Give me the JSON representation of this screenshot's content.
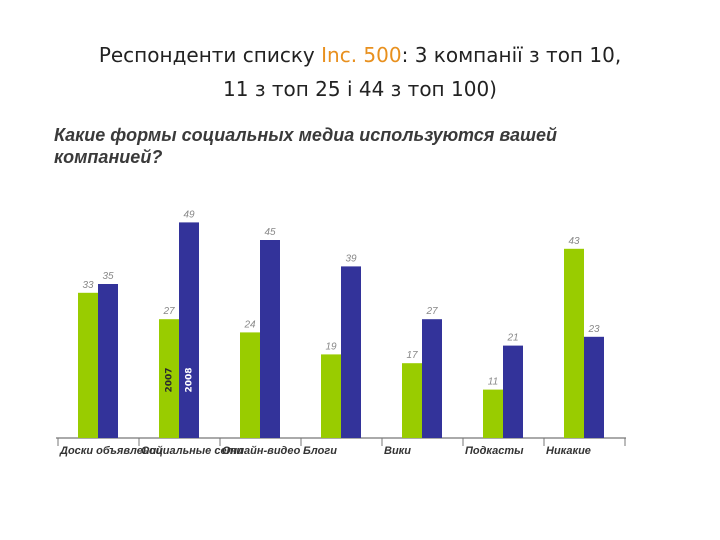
{
  "slide": {
    "title_part1": "Респонденти списку ",
    "title_accent": "Inc. 500",
    "title_part2": ": 3 компанії з топ 10,",
    "title_line2": "11 з топ 25 і 44 з топ 100)"
  },
  "colors": {
    "accent": "#e8901e",
    "series_2007": "#99cc00",
    "series_2008": "#33339a"
  },
  "chart_data": {
    "type": "bar",
    "title": "Какие формы социальных медиа используются вашей компанией?",
    "categories": [
      "Доски объявлений",
      "Социальные сети",
      "Онлайн-видео",
      "Блоги",
      "Вики",
      "Подкасты",
      "Никакие"
    ],
    "category_lines": [
      [
        "Доски",
        "объявлений"
      ],
      [
        "Социальные",
        "сети"
      ],
      [
        "Онлайн-",
        "видео"
      ],
      [
        "Блоги"
      ],
      [
        "Вики"
      ],
      [
        "Подкасты"
      ],
      [
        "Никакие"
      ]
    ],
    "series": [
      {
        "name": "2007",
        "color": "#99cc00",
        "values": [
          33,
          27,
          24,
          19,
          17,
          11,
          43
        ]
      },
      {
        "name": "2008",
        "color": "#33339a",
        "values": [
          35,
          49,
          45,
          39,
          27,
          21,
          23
        ]
      }
    ],
    "ylim": [
      0,
      55
    ],
    "grid": false,
    "legend": "inside-bars"
  }
}
